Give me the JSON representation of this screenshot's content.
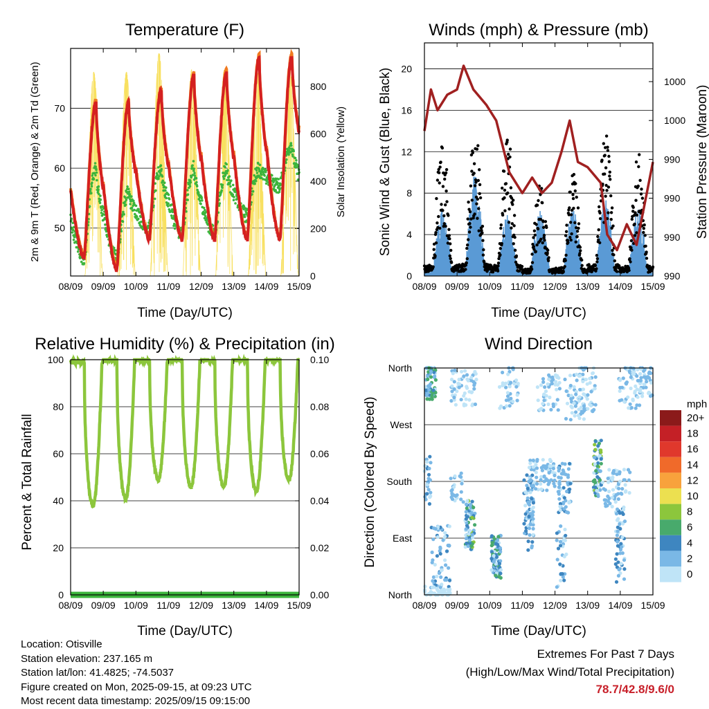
{
  "panels": {
    "temperature": {
      "title": "Temperature (F)",
      "xlabel": "Time (Day/UTC)",
      "ylabel_left": "2m & 9m T (Red, Orange) & 2m Td (Green)",
      "ylabel_right": "Solar Insolation (Yellow)"
    },
    "winds": {
      "title": "Winds (mph) & Pressure (mb)",
      "xlabel": "Time (Day/UTC)",
      "ylabel_left": "Sonic Wind & Gust (Blue, Black)",
      "ylabel_right": "Station Pressure (Maroon)"
    },
    "humidity": {
      "title": "Relative Humidity (%) & Precipitation (in)",
      "xlabel": "Time (Day/UTC)",
      "ylabel_left": "Percent & Total Rainfall"
    },
    "direction": {
      "title": "Wind Direction",
      "xlabel": "Time (Day/UTC)",
      "ylabel_left": "Direction (Colored By Speed)",
      "legend_unit": "mph"
    }
  },
  "info": {
    "location": "Location: Otisville",
    "elevation": "Station elevation: 237.165 m",
    "latlon": "Station lat/lon: 41.4825; -74.5037",
    "created": "Figure created on Mon, 2025-09-15, at 09:23 UTC",
    "recent": "Most recent data timestamp: 2025/09/15 09:15:00"
  },
  "extremes": {
    "heading": "Extremes For Past 7 Days",
    "subheading": "(High/Low/Max Wind/Total Precipitation)",
    "values": "78.7/42.8/9.6/0"
  },
  "colors": {
    "temp_2m": "#d42020",
    "temp_9m": "#f07a20",
    "dewpoint": "#3cb43c",
    "solar": "#f8e060",
    "wind": "#5b9bd5",
    "gust": "#000000",
    "pressure": "#a02020",
    "rh": "#8cc63c",
    "precip": "#3cb43c"
  },
  "chart_data": [
    {
      "type": "line",
      "panel": "temperature",
      "x_ticks": [
        "08/09",
        "09/09",
        "10/09",
        "11/09",
        "12/09",
        "13/09",
        "14/09",
        "15/09"
      ],
      "x_range": [
        0,
        7
      ],
      "ylim": [
        42,
        80
      ],
      "y_ticks": [
        50,
        60,
        70
      ],
      "y2lim": [
        0,
        960
      ],
      "y2_ticks": [
        0,
        200,
        400,
        600,
        800
      ],
      "daily_max_temp": [
        71,
        71,
        73,
        75.5,
        76,
        78.5,
        78.7
      ],
      "daily_min_temp": [
        45,
        43,
        48,
        48,
        48,
        48,
        48,
        54
      ],
      "daily_max_dewpoint": [
        60,
        56,
        60,
        60,
        60,
        60,
        64
      ],
      "daily_min_dewpoint": [
        45,
        45,
        50,
        49,
        49,
        52,
        57,
        54
      ],
      "daily_max_solar": [
        860,
        860,
        940,
        870,
        870,
        880,
        880
      ],
      "series": [
        {
          "name": "2m T"
        },
        {
          "name": "9m T"
        },
        {
          "name": "2m Td"
        },
        {
          "name": "Solar Insolation"
        }
      ]
    },
    {
      "type": "scatter",
      "panel": "winds",
      "x_ticks": [
        "08/09",
        "09/09",
        "10/09",
        "11/09",
        "12/09",
        "13/09",
        "14/09",
        "15/09"
      ],
      "x_range": [
        0,
        7
      ],
      "ylim": [
        0,
        22.5
      ],
      "y_ticks": [
        0,
        4,
        8,
        12,
        16,
        20
      ],
      "y2_tick_labels": [
        "990",
        "990",
        "990",
        "990",
        "1000",
        "1000"
      ],
      "gust_daily_max": [
        13.5,
        14.5,
        13.5,
        9,
        10,
        14,
        12
      ],
      "wind_daily_max": [
        6.5,
        9.8,
        6,
        6.5,
        6.5,
        7.5,
        6.5
      ],
      "pressure_track": [
        {
          "x": 0.0,
          "y": 14
        },
        {
          "x": 0.2,
          "y": 18
        },
        {
          "x": 0.4,
          "y": 16
        },
        {
          "x": 0.7,
          "y": 17.5
        },
        {
          "x": 1.0,
          "y": 18
        },
        {
          "x": 1.2,
          "y": 20.3
        },
        {
          "x": 1.5,
          "y": 18
        },
        {
          "x": 1.9,
          "y": 16.5
        },
        {
          "x": 2.2,
          "y": 15
        },
        {
          "x": 2.6,
          "y": 10
        },
        {
          "x": 3.0,
          "y": 8
        },
        {
          "x": 3.3,
          "y": 9.5
        },
        {
          "x": 3.6,
          "y": 8
        },
        {
          "x": 3.9,
          "y": 9
        },
        {
          "x": 4.2,
          "y": 12
        },
        {
          "x": 4.45,
          "y": 15
        },
        {
          "x": 4.7,
          "y": 11
        },
        {
          "x": 5.0,
          "y": 10.5
        },
        {
          "x": 5.4,
          "y": 9
        },
        {
          "x": 5.6,
          "y": 4
        },
        {
          "x": 5.9,
          "y": 2.5
        },
        {
          "x": 6.2,
          "y": 5
        },
        {
          "x": 6.5,
          "y": 3
        },
        {
          "x": 7.0,
          "y": 11
        }
      ]
    },
    {
      "type": "line",
      "panel": "humidity",
      "x_ticks": [
        "08/09",
        "09/09",
        "10/09",
        "11/09",
        "12/09",
        "13/09",
        "14/09",
        "15/09"
      ],
      "x_range": [
        0,
        7
      ],
      "ylim": [
        0,
        100
      ],
      "y_ticks": [
        0,
        20,
        40,
        60,
        80,
        100
      ],
      "y2_tick_labels": [
        "0.00",
        "0.02",
        "0.04",
        "0.06",
        "0.08",
        "0.10"
      ],
      "daily_min_rh": [
        38,
        41,
        49,
        46,
        46,
        44,
        49
      ],
      "daily_max_rh": [
        99,
        100,
        100,
        100,
        100,
        100,
        100
      ],
      "total_precipitation": 0,
      "series": [
        {
          "name": "Relative Humidity"
        },
        {
          "name": "Precipitation"
        }
      ]
    },
    {
      "type": "scatter",
      "panel": "direction",
      "x_ticks": [
        "08/09",
        "09/09",
        "10/09",
        "11/09",
        "12/09",
        "13/09",
        "14/09",
        "15/09"
      ],
      "x_range": [
        0,
        7
      ],
      "y_ticks": [
        "North",
        "East",
        "South",
        "West",
        "North"
      ],
      "y_range": [
        0,
        360
      ],
      "legend": {
        "labels": [
          "20+",
          "18",
          "16",
          "14",
          "12",
          "10",
          "8",
          "6",
          "4",
          "2",
          "0"
        ],
        "colors": [
          "#8b1a1a",
          "#c42026",
          "#e0382c",
          "#f06a2a",
          "#f8a23c",
          "#ece050",
          "#8cc63c",
          "#48aa6c",
          "#3e86c0",
          "#7ab8e6",
          "#bfe4f7"
        ]
      }
    }
  ]
}
